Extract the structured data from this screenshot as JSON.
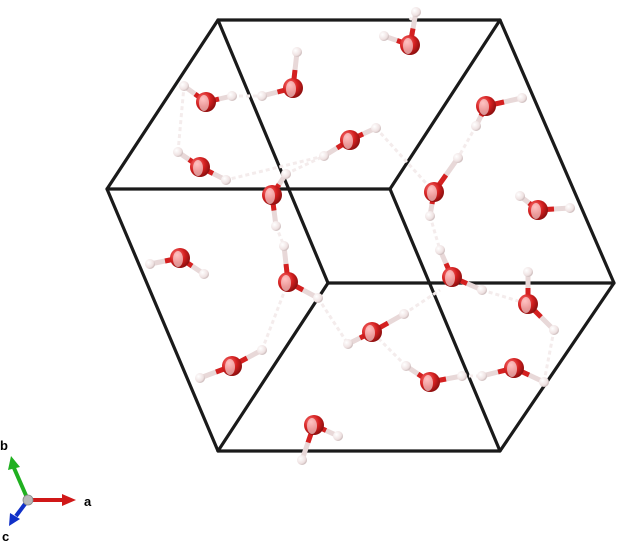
{
  "viewer": {
    "background": "#ffffff",
    "cell_edge_color": "#1a1a1a",
    "oxygen_color": "#d42020",
    "hydrogen_color": "#f1e6e6",
    "hbond_color": "#f4ecec",
    "bond_color": "#e8d8d8"
  },
  "axes": {
    "a": {
      "label": "a",
      "color": "#d01818"
    },
    "b": {
      "label": "b",
      "color": "#20b020"
    },
    "c": {
      "label": "c",
      "color": "#1030c8"
    },
    "origin_color": "#b8b8b8"
  }
}
